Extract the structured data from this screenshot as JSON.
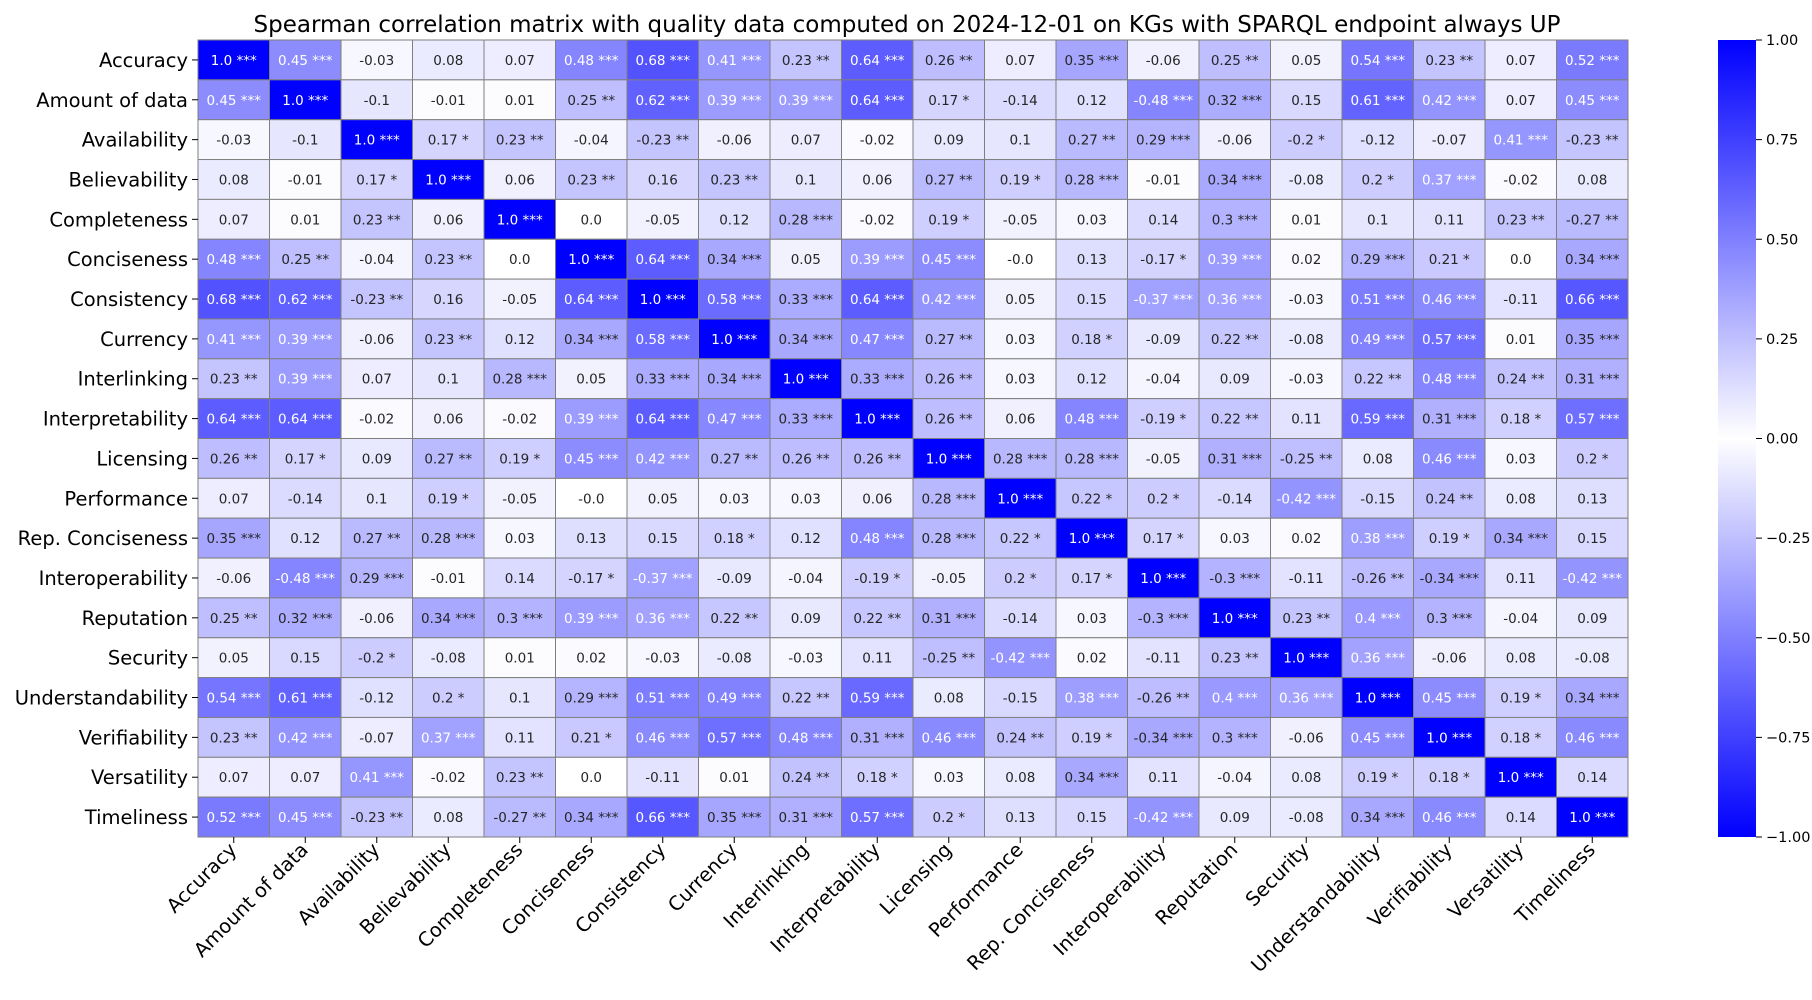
{
  "chart_data": {
    "type": "heatmap",
    "title": "Spearman correlation matrix with quality data computed on 2024-12-01 on KGs with SPARQL endpoint always UP",
    "labels": [
      "Accuracy",
      "Amount of data",
      "Availability",
      "Believability",
      "Completeness",
      "Conciseness",
      "Consistency",
      "Currency",
      "Interlinking",
      "Interpretability",
      "Licensing",
      "Performance",
      "Rep. Conciseness",
      "Interoperability",
      "Reputation",
      "Security",
      "Understandability",
      "Verifiability",
      "Versatility",
      "Timeliness"
    ],
    "values": [
      [
        1.0,
        0.45,
        -0.03,
        0.08,
        0.07,
        0.48,
        0.68,
        0.41,
        0.23,
        0.64,
        0.26,
        0.07,
        0.35,
        -0.06,
        0.25,
        0.05,
        0.54,
        0.23,
        0.07,
        0.52
      ],
      [
        0.45,
        1.0,
        -0.1,
        -0.01,
        0.01,
        0.25,
        0.62,
        0.39,
        0.39,
        0.64,
        0.17,
        -0.14,
        0.12,
        -0.48,
        0.32,
        0.15,
        0.61,
        0.42,
        0.07,
        0.45
      ],
      [
        -0.03,
        -0.1,
        1.0,
        0.17,
        0.23,
        -0.04,
        -0.23,
        -0.06,
        0.07,
        -0.02,
        0.09,
        0.1,
        0.27,
        0.29,
        -0.06,
        -0.2,
        -0.12,
        -0.07,
        0.41,
        -0.23
      ],
      [
        0.08,
        -0.01,
        0.17,
        1.0,
        0.06,
        0.23,
        0.16,
        0.23,
        0.1,
        0.06,
        0.27,
        0.19,
        0.28,
        -0.01,
        0.34,
        -0.08,
        0.2,
        0.37,
        -0.02,
        0.08
      ],
      [
        0.07,
        0.01,
        0.23,
        0.06,
        1.0,
        0.0,
        -0.05,
        0.12,
        0.28,
        -0.02,
        0.19,
        -0.05,
        0.03,
        0.14,
        0.3,
        0.01,
        0.1,
        0.11,
        0.23,
        -0.27
      ],
      [
        0.48,
        0.25,
        -0.04,
        0.23,
        0.0,
        1.0,
        0.64,
        0.34,
        0.05,
        0.39,
        0.45,
        -0.0,
        0.13,
        -0.17,
        0.39,
        0.02,
        0.29,
        0.21,
        0.0,
        0.34
      ],
      [
        0.68,
        0.62,
        -0.23,
        0.16,
        -0.05,
        0.64,
        1.0,
        0.58,
        0.33,
        0.64,
        0.42,
        0.05,
        0.15,
        -0.37,
        0.36,
        -0.03,
        0.51,
        0.46,
        -0.11,
        0.66
      ],
      [
        0.41,
        0.39,
        -0.06,
        0.23,
        0.12,
        0.34,
        0.58,
        1.0,
        0.34,
        0.47,
        0.27,
        0.03,
        0.18,
        -0.09,
        0.22,
        -0.08,
        0.49,
        0.57,
        0.01,
        0.35
      ],
      [
        0.23,
        0.39,
        0.07,
        0.1,
        0.28,
        0.05,
        0.33,
        0.34,
        1.0,
        0.33,
        0.26,
        0.03,
        0.12,
        -0.04,
        0.09,
        -0.03,
        0.22,
        0.48,
        0.24,
        0.31
      ],
      [
        0.64,
        0.64,
        -0.02,
        0.06,
        -0.02,
        0.39,
        0.64,
        0.47,
        0.33,
        1.0,
        0.26,
        0.06,
        0.48,
        -0.19,
        0.22,
        0.11,
        0.59,
        0.31,
        0.18,
        0.57
      ],
      [
        0.26,
        0.17,
        0.09,
        0.27,
        0.19,
        0.45,
        0.42,
        0.27,
        0.26,
        0.26,
        1.0,
        0.28,
        0.28,
        -0.05,
        0.31,
        -0.25,
        0.08,
        0.46,
        0.03,
        0.2
      ],
      [
        0.07,
        -0.14,
        0.1,
        0.19,
        -0.05,
        -0.0,
        0.05,
        0.03,
        0.03,
        0.06,
        0.28,
        1.0,
        0.22,
        0.2,
        -0.14,
        -0.42,
        -0.15,
        0.24,
        0.08,
        0.13
      ],
      [
        0.35,
        0.12,
        0.27,
        0.28,
        0.03,
        0.13,
        0.15,
        0.18,
        0.12,
        0.48,
        0.28,
        0.22,
        1.0,
        0.17,
        0.03,
        0.02,
        0.38,
        0.19,
        0.34,
        0.15
      ],
      [
        -0.06,
        -0.48,
        0.29,
        -0.01,
        0.14,
        -0.17,
        -0.37,
        -0.09,
        -0.04,
        -0.19,
        -0.05,
        0.2,
        0.17,
        1.0,
        -0.3,
        -0.11,
        -0.26,
        -0.34,
        0.11,
        -0.42
      ],
      [
        0.25,
        0.32,
        -0.06,
        0.34,
        0.3,
        0.39,
        0.36,
        0.22,
        0.09,
        0.22,
        0.31,
        -0.14,
        0.03,
        -0.3,
        1.0,
        0.23,
        0.4,
        0.3,
        -0.04,
        0.09
      ],
      [
        0.05,
        0.15,
        -0.2,
        -0.08,
        0.01,
        0.02,
        -0.03,
        -0.08,
        -0.03,
        0.11,
        -0.25,
        -0.42,
        0.02,
        -0.11,
        0.23,
        1.0,
        0.36,
        -0.06,
        0.08,
        -0.08
      ],
      [
        0.54,
        0.61,
        -0.12,
        0.2,
        0.1,
        0.29,
        0.51,
        0.49,
        0.22,
        0.59,
        0.08,
        -0.15,
        0.38,
        -0.26,
        0.4,
        0.36,
        1.0,
        0.45,
        0.19,
        0.34
      ],
      [
        0.23,
        0.42,
        -0.07,
        0.37,
        0.11,
        0.21,
        0.46,
        0.57,
        0.48,
        0.31,
        0.46,
        0.24,
        0.19,
        -0.34,
        0.3,
        -0.06,
        0.45,
        1.0,
        0.18,
        0.46
      ],
      [
        0.07,
        0.07,
        0.41,
        -0.02,
        0.23,
        0.0,
        -0.11,
        0.01,
        0.24,
        0.18,
        0.03,
        0.08,
        0.34,
        0.11,
        -0.04,
        0.08,
        0.19,
        0.18,
        1.0,
        0.14
      ],
      [
        0.52,
        0.45,
        -0.23,
        0.08,
        -0.27,
        0.34,
        0.66,
        0.35,
        0.31,
        0.57,
        0.2,
        0.13,
        0.15,
        -0.42,
        0.09,
        -0.08,
        0.34,
        0.46,
        0.14,
        1.0
      ]
    ],
    "annotations": [
      [
        "1.0 ***",
        "0.45 ***",
        "-0.03",
        "0.08",
        "0.07",
        "0.48 ***",
        "0.68 ***",
        "0.41 ***",
        "0.23 **",
        "0.64 ***",
        "0.26 **",
        "0.07",
        "0.35 ***",
        "-0.06",
        "0.25 **",
        "0.05",
        "0.54 ***",
        "0.23 **",
        "0.07",
        "0.52 ***"
      ],
      [
        "0.45 ***",
        "1.0 ***",
        "-0.1",
        "-0.01",
        "0.01",
        "0.25 **",
        "0.62 ***",
        "0.39 ***",
        "0.39 ***",
        "0.64 ***",
        "0.17 *",
        "-0.14",
        "0.12",
        "-0.48 ***",
        "0.32 ***",
        "0.15",
        "0.61 ***",
        "0.42 ***",
        "0.07",
        "0.45 ***"
      ],
      [
        "-0.03",
        "-0.1",
        "1.0 ***",
        "0.17 *",
        "0.23 **",
        "-0.04",
        "-0.23 **",
        "-0.06",
        "0.07",
        "-0.02",
        "0.09",
        "0.1",
        "0.27 **",
        "0.29 ***",
        "-0.06",
        "-0.2 *",
        "-0.12",
        "-0.07",
        "0.41 ***",
        "-0.23 **"
      ],
      [
        "0.08",
        "-0.01",
        "0.17 *",
        "1.0 ***",
        "0.06",
        "0.23 **",
        "0.16",
        "0.23 **",
        "0.1",
        "0.06",
        "0.27 **",
        "0.19 *",
        "0.28 ***",
        "-0.01",
        "0.34 ***",
        "-0.08",
        "0.2 *",
        "0.37 ***",
        "-0.02",
        "0.08"
      ],
      [
        "0.07",
        "0.01",
        "0.23 **",
        "0.06",
        "1.0 ***",
        "0.0",
        "-0.05",
        "0.12",
        "0.28 ***",
        "-0.02",
        "0.19 *",
        "-0.05",
        "0.03",
        "0.14",
        "0.3 ***",
        "0.01",
        "0.1",
        "0.11",
        "0.23 **",
        "-0.27 **"
      ],
      [
        "0.48 ***",
        "0.25 **",
        "-0.04",
        "0.23 **",
        "0.0",
        "1.0 ***",
        "0.64 ***",
        "0.34 ***",
        "0.05",
        "0.39 ***",
        "0.45 ***",
        "-0.0",
        "0.13",
        "-0.17 *",
        "0.39 ***",
        "0.02",
        "0.29 ***",
        "0.21 *",
        "0.0",
        "0.34 ***"
      ],
      [
        "0.68 ***",
        "0.62 ***",
        "-0.23 **",
        "0.16",
        "-0.05",
        "0.64 ***",
        "1.0 ***",
        "0.58 ***",
        "0.33 ***",
        "0.64 ***",
        "0.42 ***",
        "0.05",
        "0.15",
        "-0.37 ***",
        "0.36 ***",
        "-0.03",
        "0.51 ***",
        "0.46 ***",
        "-0.11",
        "0.66 ***"
      ],
      [
        "0.41 ***",
        "0.39 ***",
        "-0.06",
        "0.23 **",
        "0.12",
        "0.34 ***",
        "0.58 ***",
        "1.0 ***",
        "0.34 ***",
        "0.47 ***",
        "0.27 **",
        "0.03",
        "0.18 *",
        "-0.09",
        "0.22 **",
        "-0.08",
        "0.49 ***",
        "0.57 ***",
        "0.01",
        "0.35 ***"
      ],
      [
        "0.23 **",
        "0.39 ***",
        "0.07",
        "0.1",
        "0.28 ***",
        "0.05",
        "0.33 ***",
        "0.34 ***",
        "1.0 ***",
        "0.33 ***",
        "0.26 **",
        "0.03",
        "0.12",
        "-0.04",
        "0.09",
        "-0.03",
        "0.22 **",
        "0.48 ***",
        "0.24 **",
        "0.31 ***"
      ],
      [
        "0.64 ***",
        "0.64 ***",
        "-0.02",
        "0.06",
        "-0.02",
        "0.39 ***",
        "0.64 ***",
        "0.47 ***",
        "0.33 ***",
        "1.0 ***",
        "0.26 **",
        "0.06",
        "0.48 ***",
        "-0.19 *",
        "0.22 **",
        "0.11",
        "0.59 ***",
        "0.31 ***",
        "0.18 *",
        "0.57 ***"
      ],
      [
        "0.26 **",
        "0.17 *",
        "0.09",
        "0.27 **",
        "0.19 *",
        "0.45 ***",
        "0.42 ***",
        "0.27 **",
        "0.26 **",
        "0.26 **",
        "1.0 ***",
        "0.28 ***",
        "0.28 ***",
        "-0.05",
        "0.31 ***",
        "-0.25 **",
        "0.08",
        "0.46 ***",
        "0.03",
        "0.2 *"
      ],
      [
        "0.07",
        "-0.14",
        "0.1",
        "0.19 *",
        "-0.05",
        "-0.0",
        "0.05",
        "0.03",
        "0.03",
        "0.06",
        "0.28 ***",
        "1.0 ***",
        "0.22 *",
        "0.2 *",
        "-0.14",
        "-0.42 ***",
        "-0.15",
        "0.24 **",
        "0.08",
        "0.13"
      ],
      [
        "0.35 ***",
        "0.12",
        "0.27 **",
        "0.28 ***",
        "0.03",
        "0.13",
        "0.15",
        "0.18 *",
        "0.12",
        "0.48 ***",
        "0.28 ***",
        "0.22 *",
        "1.0 ***",
        "0.17 *",
        "0.03",
        "0.02",
        "0.38 ***",
        "0.19 *",
        "0.34 ***",
        "0.15"
      ],
      [
        "-0.06",
        "-0.48 ***",
        "0.29 ***",
        "-0.01",
        "0.14",
        "-0.17 *",
        "-0.37 ***",
        "-0.09",
        "-0.04",
        "-0.19 *",
        "-0.05",
        "0.2 *",
        "0.17 *",
        "1.0 ***",
        "-0.3 ***",
        "-0.11",
        "-0.26 **",
        "-0.34 ***",
        "0.11",
        "-0.42 ***"
      ],
      [
        "0.25 **",
        "0.32 ***",
        "-0.06",
        "0.34 ***",
        "0.3 ***",
        "0.39 ***",
        "0.36 ***",
        "0.22 **",
        "0.09",
        "0.22 **",
        "0.31 ***",
        "-0.14",
        "0.03",
        "-0.3 ***",
        "1.0 ***",
        "0.23 **",
        "0.4 ***",
        "0.3 ***",
        "-0.04",
        "0.09"
      ],
      [
        "0.05",
        "0.15",
        "-0.2 *",
        "-0.08",
        "0.01",
        "0.02",
        "-0.03",
        "-0.08",
        "-0.03",
        "0.11",
        "-0.25 **",
        "-0.42 ***",
        "0.02",
        "-0.11",
        "0.23 **",
        "1.0 ***",
        "0.36 ***",
        "-0.06",
        "0.08",
        "-0.08"
      ],
      [
        "0.54 ***",
        "0.61 ***",
        "-0.12",
        "0.2 *",
        "0.1",
        "0.29 ***",
        "0.51 ***",
        "0.49 ***",
        "0.22 **",
        "0.59 ***",
        "0.08",
        "-0.15",
        "0.38 ***",
        "-0.26 **",
        "0.4 ***",
        "0.36 ***",
        "1.0 ***",
        "0.45 ***",
        "0.19 *",
        "0.34 ***"
      ],
      [
        "0.23 **",
        "0.42 ***",
        "-0.07",
        "0.37 ***",
        "0.11",
        "0.21 *",
        "0.46 ***",
        "0.57 ***",
        "0.48 ***",
        "0.31 ***",
        "0.46 ***",
        "0.24 **",
        "0.19 *",
        "-0.34 ***",
        "0.3 ***",
        "-0.06",
        "0.45 ***",
        "1.0 ***",
        "0.18 *",
        "0.46 ***"
      ],
      [
        "0.07",
        "0.07",
        "0.41 ***",
        "-0.02",
        "0.23 **",
        "0.0",
        "-0.11",
        "0.01",
        "0.24 **",
        "0.18 *",
        "0.03",
        "0.08",
        "0.34 ***",
        "0.11",
        "-0.04",
        "0.08",
        "0.19 *",
        "0.18 *",
        "1.0 ***",
        "0.14"
      ],
      [
        "0.52 ***",
        "0.45 ***",
        "-0.23 **",
        "0.08",
        "-0.27 **",
        "0.34 ***",
        "0.66 ***",
        "0.35 ***",
        "0.31 ***",
        "0.57 ***",
        "0.2 *",
        "0.13",
        "0.15",
        "-0.42 ***",
        "0.09",
        "-0.08",
        "0.34 ***",
        "0.46 ***",
        "0.14",
        "1.0 ***"
      ]
    ],
    "colorbar": {
      "range": [
        -1.0,
        1.0
      ],
      "ticks": [
        1.0,
        0.75,
        0.5,
        0.25,
        0.0,
        -0.25,
        -0.5,
        -0.75,
        -1.0
      ],
      "tick_labels": [
        "1.00",
        "0.75",
        "0.50",
        "0.25",
        "0.00",
        "−0.25",
        "−0.50",
        "−0.75",
        "−1.00"
      ],
      "colors": {
        "negative": "#0000ff",
        "zero": "#ffffff",
        "positive": "#0000ff"
      }
    }
  }
}
